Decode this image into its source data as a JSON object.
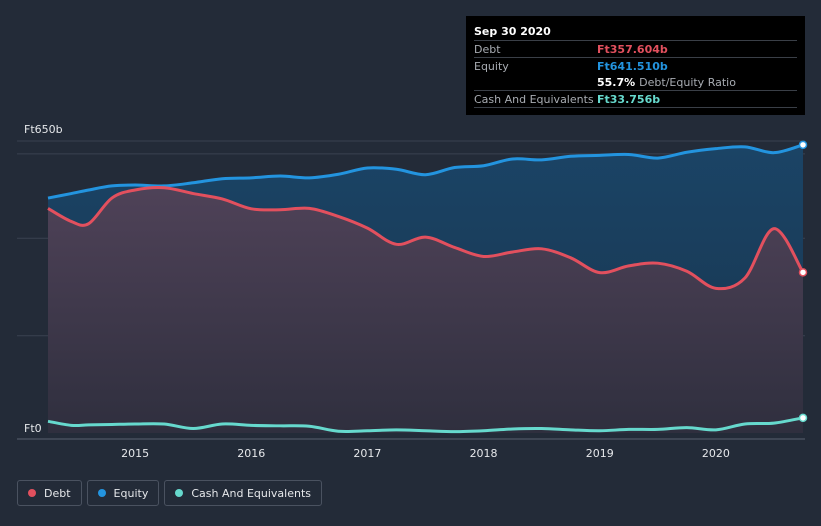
{
  "chart_data": {
    "type": "area",
    "currency_prefix": "Ft",
    "y_axis": {
      "max_label": "Ft650b",
      "min_label": "Ft0",
      "ylim": [
        0,
        650
      ],
      "unit": "billion"
    },
    "x_axis": {
      "tick_labels": [
        "2015",
        "2016",
        "2017",
        "2018",
        "2019",
        "2020"
      ],
      "xlim": [
        2014.25,
        2020.75
      ]
    },
    "series": [
      {
        "name": "Debt",
        "color": "#e2505e",
        "fill": "#4a3e52",
        "x": [
          2014.25,
          2014.45,
          2014.6,
          2014.8,
          2015.0,
          2015.25,
          2015.5,
          2015.75,
          2016.0,
          2016.25,
          2016.5,
          2016.75,
          2017.0,
          2017.25,
          2017.5,
          2017.75,
          2018.0,
          2018.25,
          2018.5,
          2018.75,
          2019.0,
          2019.25,
          2019.5,
          2019.75,
          2020.0,
          2020.25,
          2020.5,
          2020.75
        ],
        "values": [
          500,
          471,
          466,
          523,
          541,
          546,
          533,
          521,
          499,
          497,
          500,
          482,
          456,
          420,
          436,
          413,
          393,
          403,
          410,
          390,
          357,
          372,
          378,
          360,
          322,
          345,
          455,
          357.604
        ]
      },
      {
        "name": "Equity",
        "color": "#2394df",
        "fill": "#1a3b56",
        "x": [
          2014.25,
          2014.45,
          2014.6,
          2014.8,
          2015.0,
          2015.25,
          2015.5,
          2015.75,
          2016.0,
          2016.25,
          2016.5,
          2016.75,
          2017.0,
          2017.25,
          2017.5,
          2017.75,
          2018.0,
          2018.25,
          2018.5,
          2018.75,
          2019.0,
          2019.25,
          2019.5,
          2019.75,
          2020.0,
          2020.25,
          2020.5,
          2020.75
        ],
        "values": [
          523,
          533,
          541,
          550,
          552,
          550,
          557,
          566,
          568,
          572,
          568,
          576,
          590,
          587,
          575,
          591,
          595,
          610,
          608,
          616,
          618,
          620,
          612,
          625,
          633,
          637,
          624,
          641.51
        ]
      },
      {
        "name": "Cash And Equivalents",
        "color": "#66d9cd",
        "fill": "none",
        "x": [
          2014.25,
          2014.45,
          2014.6,
          2014.8,
          2015.0,
          2015.25,
          2015.5,
          2015.75,
          2016.0,
          2016.25,
          2016.5,
          2016.75,
          2017.0,
          2017.25,
          2017.5,
          2017.75,
          2018.0,
          2018.25,
          2018.5,
          2018.75,
          2019.0,
          2019.25,
          2019.5,
          2019.75,
          2020.0,
          2020.25,
          2020.5,
          2020.75
        ],
        "values": [
          26,
          17,
          18,
          19,
          20,
          20,
          10,
          20,
          17,
          16,
          15,
          4,
          5,
          7,
          5,
          3,
          5,
          9,
          10,
          7,
          5,
          8,
          8,
          12,
          7,
          20,
          22,
          33.756
        ]
      }
    ]
  },
  "tooltip": {
    "date": "Sep 30 2020",
    "debt_label": "Debt",
    "debt_value": "Ft357.604b",
    "equity_label": "Equity",
    "equity_value": "Ft641.510b",
    "ratio_value": "55.7%",
    "ratio_label": "Debt/Equity Ratio",
    "cash_label": "Cash And Equivalents",
    "cash_value": "Ft33.756b"
  },
  "legend": [
    {
      "label": "Debt",
      "color": "#e2505e"
    },
    {
      "label": "Equity",
      "color": "#2394df"
    },
    {
      "label": "Cash And Equivalents",
      "color": "#66d9cd"
    }
  ]
}
